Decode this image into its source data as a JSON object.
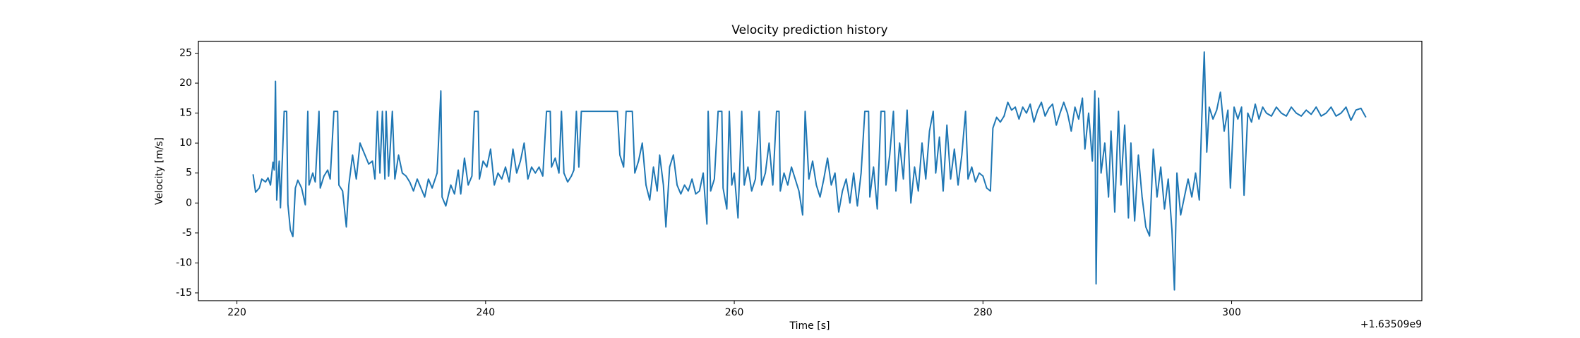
{
  "chart_data": {
    "type": "line",
    "title": "Velocity prediction history",
    "x_label": "Time [s]",
    "y_label": "Velocity [m/s]",
    "x_offset_label": "+1.63509e9",
    "xlim": [
      216.9,
      315.3
    ],
    "ylim": [
      -16.3,
      27.0
    ],
    "xticks": [
      220,
      240,
      260,
      280,
      300
    ],
    "yticks": [
      -15,
      -10,
      -5,
      0,
      5,
      10,
      15,
      20,
      25
    ],
    "grid": false,
    "series": [
      {
        "color": "#1f77b4",
        "x": [
          221.3,
          221.5,
          221.8,
          222.0,
          222.3,
          222.5,
          222.7,
          222.9,
          223.0,
          223.1,
          223.2,
          223.4,
          223.5,
          223.8,
          224.0,
          224.1,
          224.3,
          224.5,
          224.7,
          224.9,
          225.2,
          225.5,
          225.7,
          225.8,
          226.1,
          226.3,
          226.6,
          226.7,
          227.0,
          227.3,
          227.5,
          227.8,
          228.1,
          228.2,
          228.5,
          228.8,
          229.0,
          229.3,
          229.6,
          229.9,
          230.3,
          230.6,
          230.9,
          231.1,
          231.3,
          231.5,
          231.7,
          231.9,
          232.0,
          232.2,
          232.5,
          232.7,
          233.0,
          233.3,
          233.6,
          233.9,
          234.2,
          234.5,
          234.8,
          235.1,
          235.4,
          235.7,
          236.1,
          236.4,
          236.5,
          236.8,
          237.2,
          237.5,
          237.8,
          238.0,
          238.3,
          238.6,
          238.9,
          239.1,
          239.4,
          239.5,
          239.8,
          240.1,
          240.4,
          240.7,
          241.0,
          241.3,
          241.6,
          241.9,
          242.2,
          242.5,
          242.8,
          243.1,
          243.4,
          243.7,
          244.0,
          244.3,
          244.6,
          244.9,
          245.2,
          245.3,
          245.6,
          245.9,
          246.1,
          246.3,
          246.6,
          246.9,
          247.1,
          247.3,
          247.5,
          247.7,
          250.6,
          250.8,
          251.1,
          251.3,
          251.8,
          252.0,
          252.3,
          252.6,
          252.9,
          253.2,
          253.5,
          253.8,
          254.0,
          254.3,
          254.5,
          254.8,
          255.1,
          255.4,
          255.7,
          256.0,
          256.3,
          256.6,
          256.9,
          257.2,
          257.5,
          257.8,
          257.9,
          258.1,
          258.4,
          258.7,
          259.0,
          259.1,
          259.4,
          259.6,
          259.8,
          260.0,
          260.3,
          260.6,
          260.8,
          261.1,
          261.4,
          261.7,
          262.0,
          262.2,
          262.5,
          262.8,
          263.1,
          263.4,
          263.6,
          263.7,
          264.0,
          264.3,
          264.6,
          264.9,
          265.2,
          265.5,
          265.7,
          266.0,
          266.3,
          266.6,
          266.9,
          267.2,
          267.5,
          267.8,
          268.1,
          268.4,
          268.7,
          269.0,
          269.3,
          269.6,
          269.9,
          270.2,
          270.5,
          270.8,
          270.9,
          271.2,
          271.5,
          271.8,
          272.1,
          272.2,
          272.5,
          272.8,
          273.0,
          273.3,
          273.6,
          273.9,
          274.2,
          274.5,
          274.8,
          275.1,
          275.4,
          275.7,
          276.0,
          276.2,
          276.5,
          276.8,
          277.1,
          277.4,
          277.7,
          278.0,
          278.3,
          278.6,
          278.8,
          279.1,
          279.4,
          279.7,
          280.0,
          280.3,
          280.6,
          280.8,
          281.1,
          281.4,
          281.7,
          282.0,
          282.3,
          282.6,
          282.9,
          283.2,
          283.5,
          283.8,
          284.1,
          284.4,
          284.7,
          285.0,
          285.3,
          285.6,
          285.9,
          286.2,
          286.5,
          286.8,
          287.1,
          287.4,
          287.7,
          288.0,
          288.2,
          288.5,
          288.8,
          289.0,
          289.1,
          289.3,
          289.5,
          289.8,
          290.1,
          290.3,
          290.6,
          290.9,
          291.1,
          291.4,
          291.7,
          291.9,
          292.2,
          292.5,
          292.8,
          293.1,
          293.4,
          293.7,
          294.0,
          294.3,
          294.6,
          294.9,
          295.2,
          295.4,
          295.6,
          295.9,
          296.2,
          296.5,
          296.8,
          297.1,
          297.4,
          297.6,
          297.8,
          298.0,
          298.2,
          298.5,
          298.8,
          299.1,
          299.4,
          299.7,
          299.9,
          300.2,
          300.5,
          300.8,
          301.0,
          301.3,
          301.6,
          301.9,
          302.2,
          302.5,
          302.8,
          303.2,
          303.6,
          304.0,
          304.4,
          304.8,
          305.2,
          305.6,
          306.0,
          306.4,
          306.8,
          307.2,
          307.6,
          308.0,
          308.4,
          308.8,
          309.2,
          309.6,
          310.0,
          310.4,
          310.8
        ],
        "values": [
          4.8,
          1.8,
          2.5,
          4,
          3.5,
          4.2,
          3,
          6.8,
          5.5,
          20.3,
          0.5,
          7,
          -0.8,
          15.3,
          15.3,
          -0.2,
          -4.5,
          -5.6,
          2.5,
          3.8,
          2.5,
          -0.3,
          15.3,
          3,
          5,
          3.5,
          15.3,
          2.5,
          4.5,
          5.5,
          4,
          15.3,
          15.3,
          3,
          2,
          -4,
          3,
          8,
          4,
          10,
          8,
          6.5,
          7,
          4,
          15.3,
          5,
          15.3,
          4,
          15.3,
          4.5,
          15.3,
          4,
          8,
          5,
          4.5,
          3.5,
          2,
          4,
          2.5,
          1,
          4,
          2.5,
          5,
          18.7,
          1,
          -0.5,
          3,
          1.5,
          5.5,
          1.5,
          7.5,
          3,
          4.5,
          15.3,
          15.3,
          4,
          7,
          6,
          9,
          3,
          5,
          4,
          6,
          3.5,
          9,
          5,
          7,
          10,
          4,
          6,
          5,
          6,
          4.5,
          15.3,
          15.3,
          6,
          7.5,
          5,
          15.3,
          5,
          3.5,
          4.5,
          5.5,
          15.3,
          6,
          15.3,
          15.3,
          8,
          6,
          15.3,
          15.3,
          5,
          7,
          10,
          3,
          0.5,
          6,
          2,
          8,
          3,
          -4,
          6,
          8,
          3,
          1.5,
          3,
          2,
          4,
          1.5,
          2,
          5,
          -3.5,
          15.3,
          2,
          4,
          15.3,
          15.3,
          2.5,
          -1,
          15.3,
          3,
          5,
          -2.5,
          15.3,
          3,
          6,
          2,
          4,
          15.3,
          3,
          5,
          10,
          3,
          15.3,
          15.3,
          2,
          5,
          3,
          6,
          4,
          2,
          -2,
          15.3,
          4,
          7,
          3,
          1,
          4,
          7.5,
          3,
          5,
          -1.5,
          2,
          4,
          0,
          5,
          -0.5,
          5,
          15.3,
          15.3,
          1,
          6,
          -1,
          15.3,
          15.3,
          3,
          8,
          15.3,
          2,
          10,
          4,
          15.5,
          0,
          6,
          2,
          10,
          4,
          12,
          15.3,
          5,
          11,
          2,
          13,
          4,
          9,
          3,
          8,
          15.3,
          4,
          6,
          3.5,
          5,
          4.5,
          2.5,
          2,
          12.5,
          14.3,
          13.5,
          14.5,
          16.8,
          15.5,
          16,
          14,
          16,
          15,
          16.5,
          13.5,
          15.5,
          16.8,
          14.5,
          15.8,
          16.5,
          13,
          15,
          16.8,
          15,
          12,
          16,
          14,
          17.5,
          9,
          15,
          7,
          18.7,
          -13.5,
          17.5,
          5,
          10,
          1,
          12,
          -1.5,
          15.3,
          3,
          13,
          -2.5,
          10,
          -3,
          8,
          1,
          -4,
          -5.5,
          9,
          1,
          6,
          -1,
          4,
          -4.5,
          -14.5,
          5,
          -2,
          1,
          4,
          1,
          5,
          0.5,
          14,
          25.2,
          8.5,
          16,
          14,
          15.5,
          18.5,
          12,
          15.5,
          2.5,
          16,
          14,
          16,
          1.3,
          15,
          13.5,
          16.5,
          14,
          16,
          15,
          14.5,
          16,
          15,
          14.5,
          16,
          15,
          14.5,
          15.5,
          14.8,
          16,
          14.5,
          15,
          16,
          14.5,
          15,
          16,
          13.8,
          15.5,
          15.8,
          14.3
        ]
      }
    ]
  }
}
